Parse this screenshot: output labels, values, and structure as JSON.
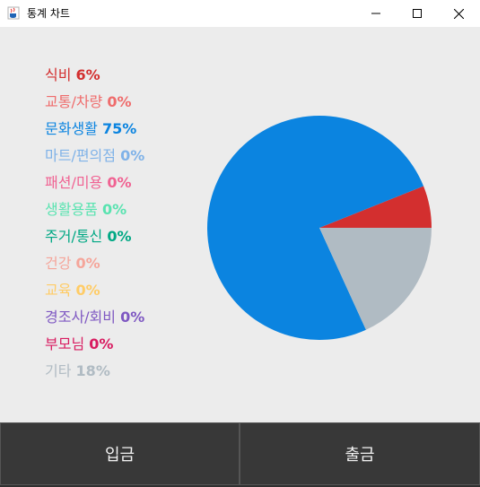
{
  "window": {
    "title": "통계 차트",
    "icon": "java-cup-icon",
    "controls": [
      "minimize-icon",
      "maximize-icon",
      "close-icon"
    ]
  },
  "chart_data": {
    "type": "pie",
    "categories": [
      "식비",
      "교통/차량",
      "문화생활",
      "마트/편의점",
      "패션/미용",
      "생활용품",
      "주거/통신",
      "건강",
      "교육",
      "경조사/회비",
      "부모님",
      "기타"
    ],
    "values": [
      6,
      0,
      75,
      0,
      0,
      0,
      0,
      0,
      0,
      0,
      0,
      18
    ],
    "labels": [
      "6%",
      "0%",
      "75%",
      "0%",
      "0%",
      "0%",
      "0%",
      "0%",
      "0%",
      "0%",
      "0%",
      "18%"
    ],
    "colors": [
      "#d32f2f",
      "#ef6c6c",
      "#0b84e0",
      "#7fb2e8",
      "#f06292",
      "#59e3b0",
      "#00a884",
      "#f5a59a",
      "#ffcc66",
      "#7e57c2",
      "#d81b60",
      "#b0bbc3"
    ],
    "legend": "left"
  },
  "buttons": {
    "deposit": "입금",
    "withdraw": "출금"
  }
}
